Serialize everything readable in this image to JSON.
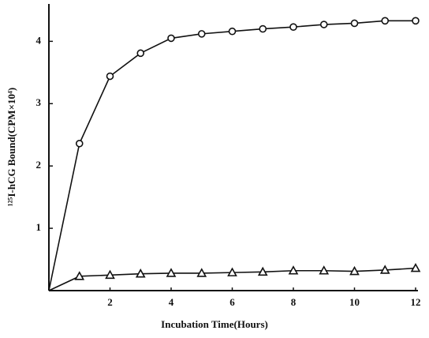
{
  "chart_data": {
    "type": "line",
    "x_label": "Incubation Time(Hours)",
    "y_label": "¹²⁵I-hCG Bound(CPM×10⁴)",
    "x": [
      0,
      1,
      2,
      3,
      4,
      5,
      6,
      7,
      8,
      9,
      10,
      11,
      12
    ],
    "series": [
      {
        "color": "#111111",
        "marker": "circle",
        "values": [
          0,
          2.36,
          3.44,
          3.81,
          4.05,
          4.12,
          4.16,
          4.2,
          4.23,
          4.27,
          4.29,
          4.33,
          4.33
        ]
      },
      {
        "color": "#111111",
        "marker": "triangle",
        "values": [
          0,
          0.23,
          0.25,
          0.27,
          0.28,
          0.28,
          0.29,
          0.3,
          0.32,
          0.32,
          0.31,
          0.33,
          0.36
        ]
      }
    ],
    "xlim": [
      0,
      12
    ],
    "xticks": [
      2,
      4,
      6,
      8,
      10,
      12
    ],
    "ylim": [
      0,
      4.6
    ],
    "yticks": [
      1,
      2,
      3,
      4
    ]
  }
}
